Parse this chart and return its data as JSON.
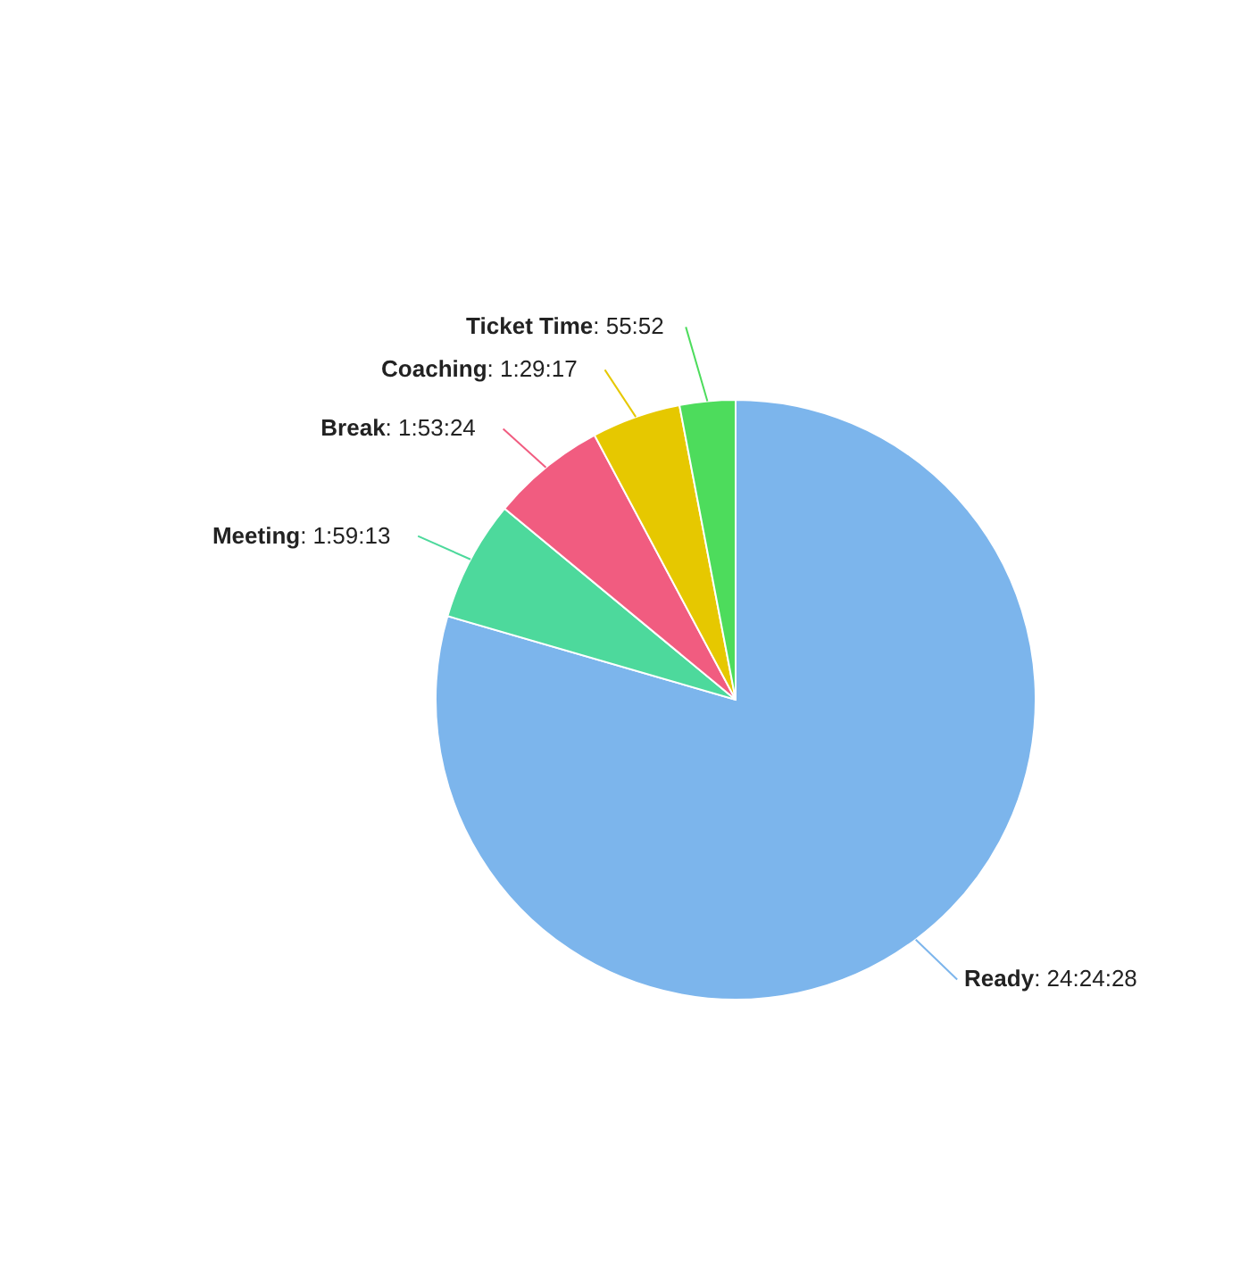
{
  "chart_data": {
    "type": "pie",
    "categories": [
      "Ready",
      "Meeting",
      "Break",
      "Coaching",
      "Ticket Time"
    ],
    "values": [
      79.5,
      6.5,
      6.2,
      4.8,
      3.0
    ],
    "value_labels": [
      ": 24:24:28",
      ": 1:59:13",
      ": 1:53:24",
      ": 1:29:17",
      ": 55:52"
    ],
    "colors": [
      "#7cb5ec",
      "#4dd99c",
      "#f15c80",
      "#e6c800",
      "#4ddc5c"
    ]
  }
}
